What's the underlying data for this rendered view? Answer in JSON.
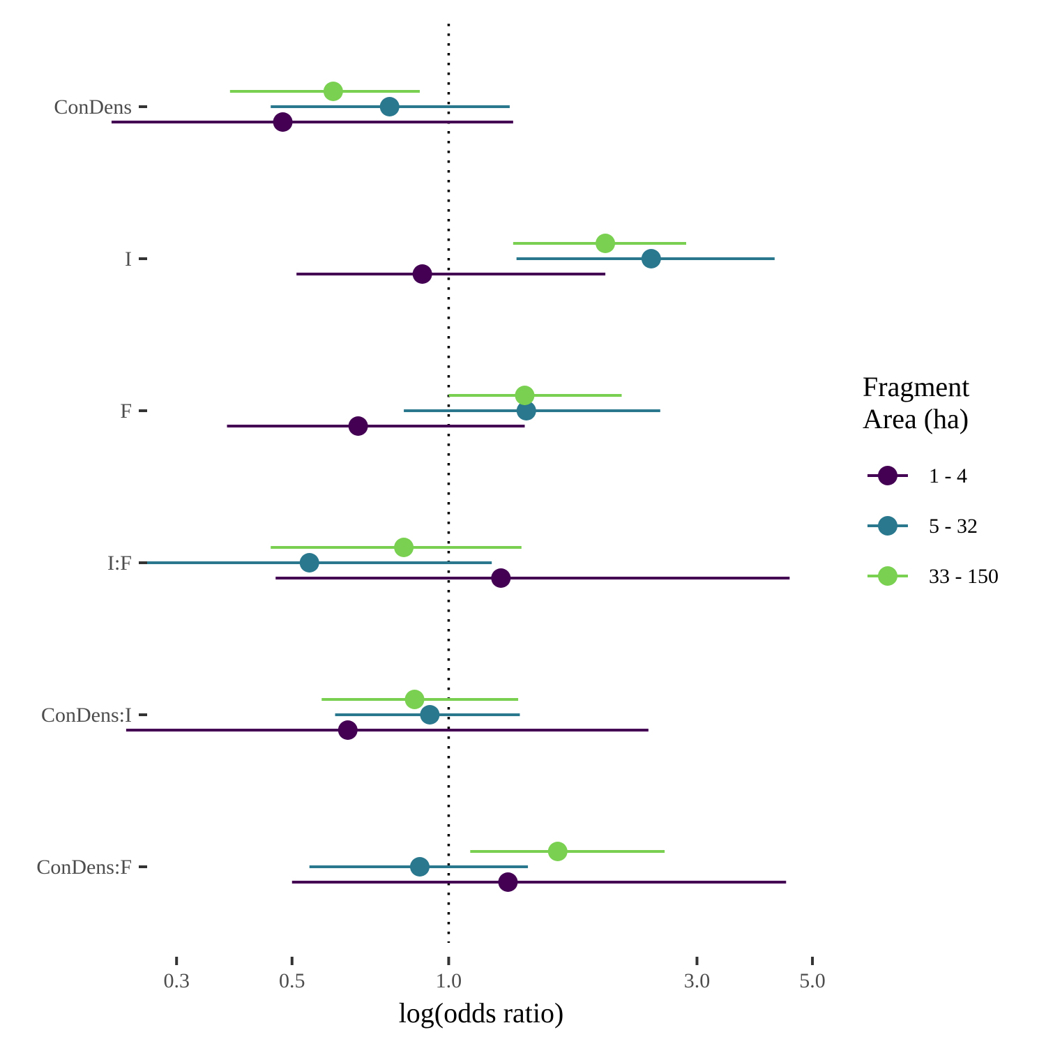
{
  "chart_data": {
    "type": "forest",
    "xlabel": "log(odds ratio)",
    "x_scale": "log",
    "xlim": [
      0.265,
      5.4
    ],
    "x_ticks": [
      0.3,
      0.5,
      1.0,
      3.0,
      5.0
    ],
    "x_tick_labels": [
      "0.3",
      "0.5",
      "1.0",
      "3.0",
      "5.0"
    ],
    "reference_line": 1.0,
    "grid": false,
    "categories": [
      "ConDens",
      "I",
      "F",
      "I:F",
      "ConDens:I",
      "ConDens:F"
    ],
    "legend": {
      "title_lines": [
        "Fragment",
        "Area (ha)"
      ],
      "position": "right"
    },
    "series": [
      {
        "name": "1 - 4",
        "color": "#440154",
        "estimates": [
          0.48,
          0.89,
          0.67,
          1.26,
          0.64,
          1.3
        ],
        "lower": [
          0.225,
          0.51,
          0.375,
          0.465,
          0.24,
          0.5
        ],
        "upper": [
          1.33,
          2.0,
          1.4,
          4.52,
          2.42,
          4.45
        ]
      },
      {
        "name": "5 - 32",
        "color": "#2a788e",
        "estimates": [
          0.77,
          2.45,
          1.41,
          0.54,
          0.92,
          0.88
        ],
        "lower": [
          0.455,
          1.35,
          0.82,
          0.26,
          0.605,
          0.54
        ],
        "upper": [
          1.31,
          4.23,
          2.55,
          1.21,
          1.37,
          1.42
        ]
      },
      {
        "name": "33 - 150",
        "color": "#7ad151",
        "estimates": [
          0.6,
          2.0,
          1.4,
          0.82,
          0.86,
          1.62
        ],
        "lower": [
          0.38,
          1.33,
          1.0,
          0.455,
          0.57,
          1.1
        ],
        "upper": [
          0.88,
          2.86,
          2.15,
          1.38,
          1.36,
          2.6
        ]
      }
    ]
  }
}
